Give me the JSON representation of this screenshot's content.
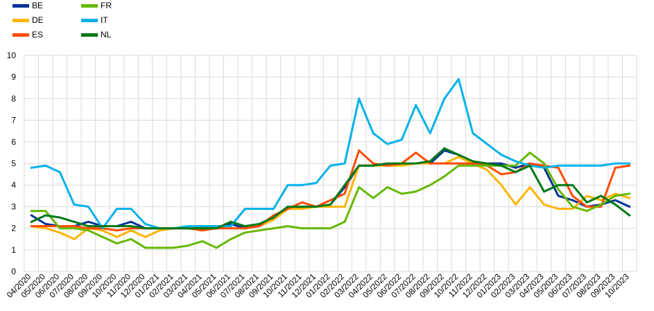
{
  "chart_data": {
    "type": "line",
    "title": "",
    "xlabel": "",
    "ylabel": "",
    "ylim": [
      0,
      10
    ],
    "yticks": [
      0,
      1,
      2,
      3,
      4,
      5,
      6,
      7,
      8,
      9,
      10
    ],
    "grid": true,
    "legend_position": "top-left",
    "x": [
      "04/2020",
      "05/2020",
      "06/2020",
      "07/2020",
      "08/2020",
      "09/2020",
      "10/2020",
      "11/2020",
      "12/2020",
      "01/2021",
      "02/2021",
      "03/2021",
      "04/2021",
      "05/2021",
      "06/2021",
      "07/2021",
      "08/2021",
      "09/2021",
      "10/2021",
      "11/2021",
      "12/2021",
      "01/2022",
      "02/2022",
      "03/2022",
      "04/2022",
      "05/2022",
      "06/2022",
      "07/2022",
      "08/2022",
      "09/2022",
      "10/2022",
      "11/2022",
      "12/2022",
      "01/2023",
      "02/2023",
      "03/2023",
      "04/2023",
      "05/2023",
      "06/2023",
      "07/2023",
      "08/2023",
      "09/2023",
      "10/2023"
    ],
    "series": [
      {
        "name": "BE",
        "color": "#003299",
        "values": [
          2.6,
          2.2,
          2.1,
          2.1,
          2.3,
          2.1,
          2.1,
          2.3,
          2.0,
          2.0,
          2.0,
          2.0,
          2.0,
          2.0,
          2.2,
          2.0,
          2.1,
          2.4,
          2.9,
          3.0,
          3.0,
          3.1,
          3.9,
          4.9,
          4.9,
          5.0,
          5.0,
          5.0,
          5.0,
          5.6,
          5.4,
          5.0,
          5.0,
          5.0,
          4.8,
          5.0,
          4.8,
          3.5,
          3.3,
          3.0,
          3.1,
          3.3,
          3.0
        ]
      },
      {
        "name": "DE",
        "color": "#FFB400",
        "values": [
          2.1,
          2.0,
          1.8,
          1.5,
          2.0,
          1.9,
          1.6,
          1.9,
          1.6,
          1.9,
          2.0,
          2.0,
          2.0,
          2.0,
          2.0,
          2.0,
          2.1,
          2.4,
          2.9,
          2.9,
          3.0,
          3.0,
          3.0,
          4.9,
          4.9,
          4.9,
          4.9,
          5.0,
          5.0,
          5.0,
          5.3,
          5.0,
          4.7,
          4.0,
          3.1,
          3.9,
          3.1,
          2.9,
          2.9,
          3.5,
          3.3,
          3.6,
          3.4
        ]
      },
      {
        "name": "ES",
        "color": "#FF4B00",
        "values": [
          2.1,
          2.1,
          2.1,
          2.1,
          2.0,
          2.0,
          1.9,
          2.0,
          2.0,
          2.0,
          2.0,
          2.0,
          1.9,
          2.0,
          2.0,
          2.0,
          2.1,
          2.6,
          2.9,
          3.2,
          3.0,
          3.3,
          3.6,
          5.6,
          5.0,
          4.9,
          5.0,
          5.5,
          5.0,
          5.0,
          5.0,
          5.0,
          4.9,
          4.5,
          4.6,
          5.0,
          4.9,
          4.8,
          3.5,
          3.0,
          3.0,
          4.8,
          4.9
        ]
      },
      {
        "name": "FR",
        "color": "#65B800",
        "values": [
          2.8,
          2.8,
          2.0,
          2.0,
          1.9,
          1.6,
          1.3,
          1.5,
          1.1,
          1.1,
          1.1,
          1.2,
          1.4,
          1.1,
          1.5,
          1.8,
          1.9,
          2.0,
          2.1,
          2.0,
          2.0,
          2.0,
          2.3,
          3.9,
          3.4,
          3.9,
          3.6,
          3.7,
          4.0,
          4.4,
          4.9,
          4.9,
          4.9,
          4.9,
          4.9,
          5.5,
          5.0,
          3.8,
          3.0,
          2.8,
          3.1,
          3.5,
          3.6
        ]
      },
      {
        "name": "IT",
        "color": "#00B1EA",
        "values": [
          4.8,
          4.9,
          4.6,
          3.1,
          3.0,
          2.0,
          2.9,
          2.9,
          2.2,
          2.0,
          2.0,
          2.1,
          2.1,
          2.1,
          2.1,
          2.9,
          2.9,
          2.9,
          4.0,
          4.0,
          4.1,
          4.9,
          5.0,
          8.0,
          6.4,
          5.9,
          6.1,
          7.7,
          6.4,
          8.0,
          8.9,
          6.4,
          5.9,
          5.4,
          5.1,
          4.9,
          4.8,
          4.9,
          4.9,
          4.9,
          4.9,
          5.0,
          5.0
        ]
      },
      {
        "name": "NL",
        "color": "#007816",
        "values": [
          2.3,
          2.6,
          2.5,
          2.3,
          2.1,
          2.1,
          2.1,
          2.1,
          2.0,
          2.0,
          2.0,
          2.0,
          2.0,
          2.0,
          2.3,
          2.1,
          2.2,
          2.5,
          3.0,
          3.0,
          3.0,
          3.1,
          4.0,
          4.9,
          4.9,
          5.0,
          5.0,
          5.0,
          5.1,
          5.7,
          5.4,
          5.1,
          5.0,
          4.9,
          4.6,
          4.9,
          3.7,
          4.0,
          4.0,
          3.2,
          3.5,
          3.1,
          2.6
        ]
      }
    ]
  }
}
